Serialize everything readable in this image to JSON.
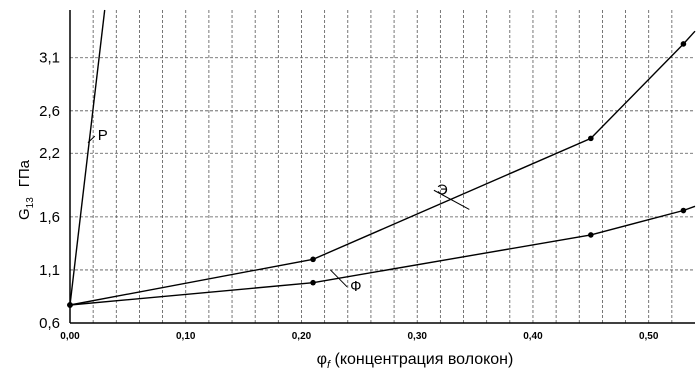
{
  "chart_data": {
    "type": "line",
    "xlabel": {
      "symbol": "φ",
      "subscript": "f",
      "text": " (концентрация волокон)"
    },
    "ylabel": {
      "symbol": "G",
      "subscript": "13",
      "unit": "ГПа"
    },
    "xlim": [
      0,
      0.54
    ],
    "ylim": [
      0.6,
      3.55
    ],
    "x_ticks": [
      {
        "value": 0.0,
        "label": "0,00"
      },
      {
        "value": 0.1,
        "label": "0,10"
      },
      {
        "value": 0.2,
        "label": "0,20"
      },
      {
        "value": 0.3,
        "label": "0,30"
      },
      {
        "value": 0.4,
        "label": "0,40"
      },
      {
        "value": 0.5,
        "label": "0,50"
      }
    ],
    "y_ticks": [
      {
        "value": 0.6,
        "label": "0,6"
      },
      {
        "value": 1.1,
        "label": "1,1"
      },
      {
        "value": 1.6,
        "label": "1,6"
      },
      {
        "value": 2.2,
        "label": "2,2"
      },
      {
        "value": 2.6,
        "label": "2,6"
      },
      {
        "value": 3.1,
        "label": "3,1"
      }
    ],
    "grid": "dashed",
    "series": [
      {
        "name": "Р",
        "x": [
          0.0,
          0.03
        ],
        "y": [
          0.77,
          3.55
        ],
        "markers": [
          true,
          false
        ]
      },
      {
        "name": "Э",
        "x": [
          0.0,
          0.21,
          0.45,
          0.53,
          0.54
        ],
        "y": [
          0.77,
          1.2,
          2.34,
          3.23,
          3.35
        ],
        "markers": [
          true,
          true,
          true,
          true,
          false
        ]
      },
      {
        "name": "Ф",
        "x": [
          0.0,
          0.21,
          0.45,
          0.53,
          0.54
        ],
        "y": [
          0.77,
          0.98,
          1.43,
          1.66,
          1.7
        ],
        "markers": [
          true,
          true,
          true,
          true,
          false
        ]
      }
    ],
    "annotations": [
      {
        "series": "Р",
        "text": "Р",
        "at_x": 0.0155,
        "at_y": 2.3,
        "label_x": 0.024,
        "label_y": 2.38
      },
      {
        "series": "Э",
        "text": "Э",
        "at_x": 0.345,
        "at_y": 1.67,
        "label_x": 0.317,
        "label_y": 1.87
      },
      {
        "series": "Ф",
        "text": "Ф",
        "at_x": 0.225,
        "at_y": 1.1,
        "label_x": 0.242,
        "label_y": 0.96
      }
    ]
  }
}
